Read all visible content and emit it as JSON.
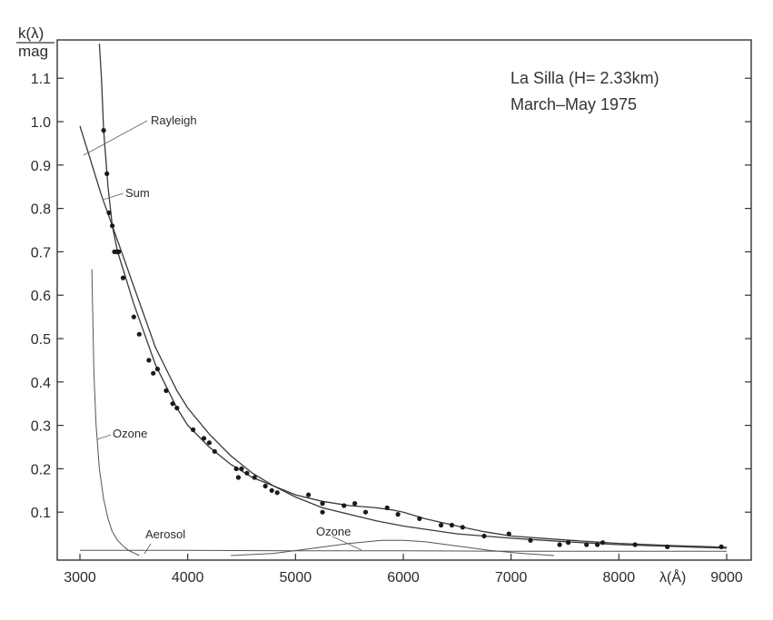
{
  "chart_data": {
    "type": "line",
    "ylabel_top": "k(λ)",
    "ylabel_bottom": "mag",
    "xlabel": "λ(Å)",
    "annotation_lines": [
      "La Silla (H= 2.33km)",
      "March–May 1975"
    ],
    "x_ticks": [
      {
        "value": 3000,
        "label": "3000"
      },
      {
        "value": 4000,
        "label": "4000"
      },
      {
        "value": 5000,
        "label": "5000"
      },
      {
        "value": 6000,
        "label": "6000"
      },
      {
        "value": 7000,
        "label": "7000"
      },
      {
        "value": 8000,
        "label": "8000"
      },
      {
        "value": 9000,
        "label": "9000"
      }
    ],
    "y_ticks": [
      {
        "value": 0.1,
        "label": "0.1"
      },
      {
        "value": 0.2,
        "label": "0.2"
      },
      {
        "value": 0.3,
        "label": "0.3"
      },
      {
        "value": 0.4,
        "label": "0.4"
      },
      {
        "value": 0.5,
        "label": "0.5"
      },
      {
        "value": 0.6,
        "label": "0.6"
      },
      {
        "value": 0.7,
        "label": "0.7"
      },
      {
        "value": 0.8,
        "label": "0.8"
      },
      {
        "value": 0.9,
        "label": "0.9"
      },
      {
        "value": 1.0,
        "label": "1.0"
      },
      {
        "value": 1.1,
        "label": "1.1"
      }
    ],
    "xlim": [
      2900,
      9200
    ],
    "ylim": [
      0,
      1.18
    ],
    "grid": false,
    "series": [
      {
        "name": "Rayleigh",
        "x": [
          3000,
          3100,
          3200,
          3300,
          3400,
          3500,
          3600,
          3700,
          3800,
          3900,
          4000,
          4200,
          4400,
          4600,
          4800,
          5000,
          5250,
          5500,
          5750,
          6000,
          6500,
          7000,
          7500,
          8000,
          8500,
          9000
        ],
        "y": [
          0.99,
          0.91,
          0.83,
          0.76,
          0.69,
          0.62,
          0.55,
          0.48,
          0.43,
          0.38,
          0.34,
          0.28,
          0.23,
          0.19,
          0.16,
          0.135,
          0.11,
          0.095,
          0.08,
          0.068,
          0.05,
          0.04,
          0.032,
          0.025,
          0.021,
          0.017
        ]
      },
      {
        "name": "Sum",
        "x": [
          3180,
          3200,
          3220,
          3260,
          3300,
          3350,
          3400,
          3500,
          3600,
          3700,
          3800,
          3900,
          4000,
          4200,
          4400,
          4600,
          4800,
          5000,
          5250,
          5500,
          5750,
          5900,
          6000,
          6200,
          6500,
          6750,
          7000,
          7500,
          8000,
          8500,
          9000
        ],
        "y": [
          1.18,
          1.1,
          0.98,
          0.85,
          0.76,
          0.7,
          0.66,
          0.58,
          0.51,
          0.44,
          0.39,
          0.34,
          0.3,
          0.25,
          0.21,
          0.18,
          0.16,
          0.14,
          0.125,
          0.115,
          0.11,
          0.105,
          0.1,
          0.085,
          0.068,
          0.055,
          0.045,
          0.036,
          0.028,
          0.023,
          0.019
        ]
      },
      {
        "name": "Ozone",
        "x": [
          3110,
          3130,
          3150,
          3180,
          3220,
          3260,
          3300,
          3350,
          3400,
          3450,
          3500,
          3550
        ],
        "y": [
          0.66,
          0.42,
          0.3,
          0.2,
          0.13,
          0.085,
          0.055,
          0.035,
          0.022,
          0.012,
          0.006,
          0.0
        ]
      },
      {
        "name": "Aerosol",
        "x": [
          3000,
          4000,
          5000,
          6000,
          7000,
          8000,
          9000
        ],
        "y": [
          0.012,
          0.012,
          0.011,
          0.011,
          0.01,
          0.01,
          0.01
        ]
      },
      {
        "name": "Ozone",
        "x": [
          4400,
          4800,
          5200,
          5500,
          5800,
          6000,
          6200,
          6500,
          6800,
          7100,
          7400
        ],
        "y": [
          0.0,
          0.005,
          0.018,
          0.028,
          0.035,
          0.035,
          0.032,
          0.022,
          0.012,
          0.005,
          0.0
        ]
      }
    ],
    "observations": {
      "x": [
        3220,
        3250,
        3270,
        3300,
        3320,
        3340,
        3360,
        3400,
        3500,
        3550,
        3640,
        3680,
        3720,
        3800,
        3860,
        3900,
        4050,
        4150,
        4200,
        4250,
        4450,
        4470,
        4500,
        4550,
        4620,
        4720,
        4780,
        4830,
        5120,
        5250,
        5250,
        5450,
        5550,
        5650,
        5850,
        5950,
        6150,
        6350,
        6450,
        6550,
        6750,
        6980,
        7180,
        7450,
        7530,
        7700,
        7800,
        7850,
        8150,
        8450,
        8950
      ],
      "y": [
        0.98,
        0.88,
        0.79,
        0.76,
        0.7,
        0.7,
        0.7,
        0.64,
        0.55,
        0.51,
        0.45,
        0.42,
        0.43,
        0.38,
        0.35,
        0.34,
        0.29,
        0.27,
        0.26,
        0.24,
        0.2,
        0.18,
        0.2,
        0.19,
        0.18,
        0.16,
        0.15,
        0.145,
        0.14,
        0.12,
        0.1,
        0.115,
        0.12,
        0.1,
        0.11,
        0.095,
        0.085,
        0.07,
        0.07,
        0.065,
        0.045,
        0.05,
        0.035,
        0.025,
        0.03,
        0.025,
        0.025,
        0.03,
        0.025,
        0.02,
        0.02
      ]
    }
  }
}
